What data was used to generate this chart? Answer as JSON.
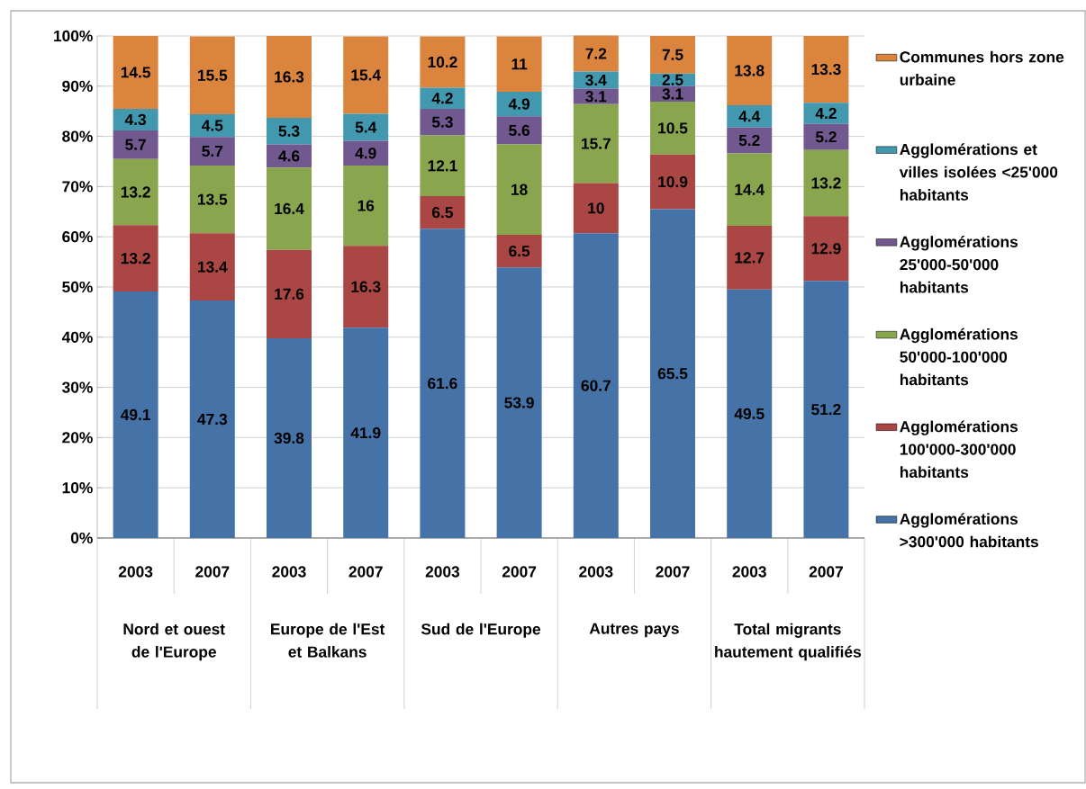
{
  "chart_data": {
    "type": "bar",
    "stacked": true,
    "categories": [
      "2003",
      "2007",
      "2003",
      "2007",
      "2003",
      "2007",
      "2003",
      "2007",
      "2003",
      "2007"
    ],
    "annotations": [
      "Nord et ouest de l'Europe",
      "Europe de l'Est et Balkans",
      "Sud de l'Europe",
      "Autres pays",
      "Total migrants hautement qualifiés"
    ],
    "series": [
      {
        "name": "Agglomérations >300'000 habitants",
        "color": "#4572a7",
        "values": [
          49.1,
          47.3,
          39.8,
          41.9,
          61.6,
          53.9,
          60.7,
          65.5,
          49.5,
          51.2
        ]
      },
      {
        "name": "Agglomérations 100'000-300'000 habitants",
        "color": "#aa4643",
        "values": [
          13.2,
          13.4,
          17.6,
          16.3,
          6.5,
          6.5,
          10,
          10.9,
          12.7,
          12.9
        ]
      },
      {
        "name": "Agglomérations 50'000-100'000 habitants",
        "color": "#89a54e",
        "values": [
          13.2,
          13.5,
          16.4,
          16,
          12.1,
          18,
          15.7,
          10.5,
          14.4,
          13.2
        ]
      },
      {
        "name": "Agglomérations 25'000-50'000 habitants",
        "color": "#71588f",
        "values": [
          5.7,
          5.7,
          4.6,
          4.9,
          5.3,
          5.6,
          3.1,
          3.1,
          5.2,
          5.2
        ]
      },
      {
        "name": "Agglomérations et villes isolées <25'000 habitants",
        "color": "#4198af",
        "values": [
          4.3,
          4.5,
          5.3,
          5.4,
          4.2,
          4.9,
          3.4,
          2.5,
          4.4,
          4.2
        ]
      },
      {
        "name": "Communes hors zone urbaine",
        "color": "#db843d",
        "values": [
          14.5,
          15.5,
          16.3,
          15.4,
          10.2,
          11,
          7.2,
          7.5,
          13.8,
          13.3
        ]
      }
    ],
    "ylim": [
      0,
      100
    ],
    "yticks": [
      {
        "value": 0,
        "label": "0%"
      },
      {
        "value": 10,
        "label": "10%"
      },
      {
        "value": 20,
        "label": "20%"
      },
      {
        "value": 30,
        "label": "30%"
      },
      {
        "value": 40,
        "label": "40%"
      },
      {
        "value": 50,
        "label": "50%"
      },
      {
        "value": 60,
        "label": "60%"
      },
      {
        "value": 70,
        "label": "70%"
      },
      {
        "value": 80,
        "label": "80%"
      },
      {
        "value": 90,
        "label": "90%"
      },
      {
        "value": 100,
        "label": "100%"
      }
    ],
    "grid": "y",
    "legend": "right",
    "data_labels": true
  }
}
